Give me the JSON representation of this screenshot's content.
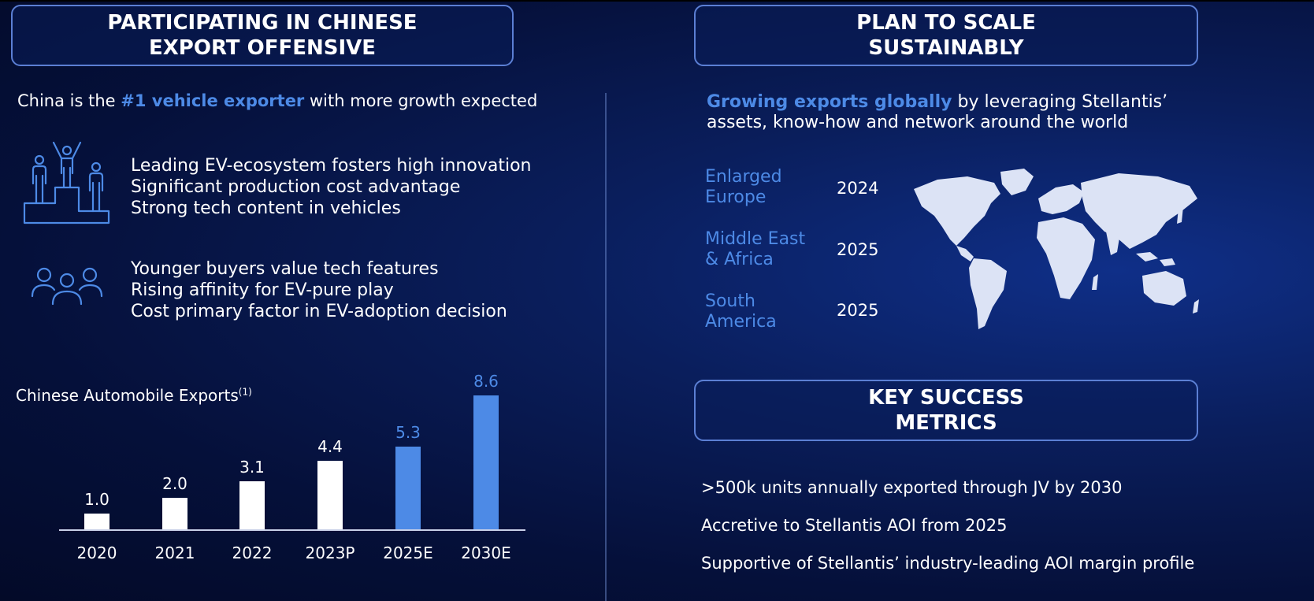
{
  "left_panel": {
    "header_line1": "PARTICIPATING IN CHINESE",
    "header_line2": "EXPORT OFFENSIVE",
    "intro_prefix": "China is the ",
    "intro_highlight": "#1 vehicle exporter",
    "intro_suffix": " with more growth expected",
    "group1": {
      "icon": "podium-icon",
      "items": [
        "Leading EV-ecosystem fosters high innovation",
        "Significant production cost advantage",
        "Strong tech content in vehicles"
      ]
    },
    "group2": {
      "icon": "people-group-icon",
      "items": [
        "Younger buyers value tech features",
        "Rising affinity for EV-pure play",
        "Cost primary factor in EV-adoption decision"
      ]
    }
  },
  "chart_data": {
    "type": "bar",
    "title": "Chinese Automobile Exports",
    "title_footnote": "(1)",
    "categories": [
      "2020",
      "2021",
      "2022",
      "2023P",
      "2025E",
      "2030E"
    ],
    "values": [
      1.0,
      2.0,
      3.1,
      4.4,
      5.3,
      8.6
    ],
    "value_labels": [
      "1.0",
      "2.0",
      "3.1",
      "4.4",
      "5.3",
      "8.6"
    ],
    "bar_colors": [
      "#ffffff",
      "#ffffff",
      "#ffffff",
      "#ffffff",
      "#4d8ae6",
      "#4d8ae6"
    ],
    "label_colors": [
      "#ffffff",
      "#ffffff",
      "#ffffff",
      "#ffffff",
      "#4d8ae6",
      "#4d8ae6"
    ],
    "grid": false,
    "ylim": [
      0,
      9
    ]
  },
  "right_panel": {
    "header_line1": "PLAN TO SCALE",
    "header_line2": "SUSTAINABLY",
    "intro_highlight": "Growing exports globally",
    "intro_rest_line1": " by leveraging Stellantis’",
    "intro_line2": "assets, know-how and network around the world",
    "regions": [
      {
        "line1": "Enlarged",
        "line2": "Europe",
        "year": "2024"
      },
      {
        "line1": "Middle East",
        "line2": "& Africa",
        "year": "2025"
      },
      {
        "line1": "South",
        "line2": "America",
        "year": "2025"
      }
    ],
    "map_icon": "world-map-icon",
    "metrics_header_line1": "KEY SUCCESS",
    "metrics_header_line2": "METRICS",
    "metrics": [
      ">500k units annually exported through JV by 2030",
      "Accretive to Stellantis AOI from 2025",
      "Supportive of Stellantis’ industry-leading AOI margin profile"
    ]
  },
  "colors": {
    "accent": "#4d8ae6",
    "background": "#06123f",
    "box_border": "#5b7fd4",
    "map": "#dce3f5"
  }
}
